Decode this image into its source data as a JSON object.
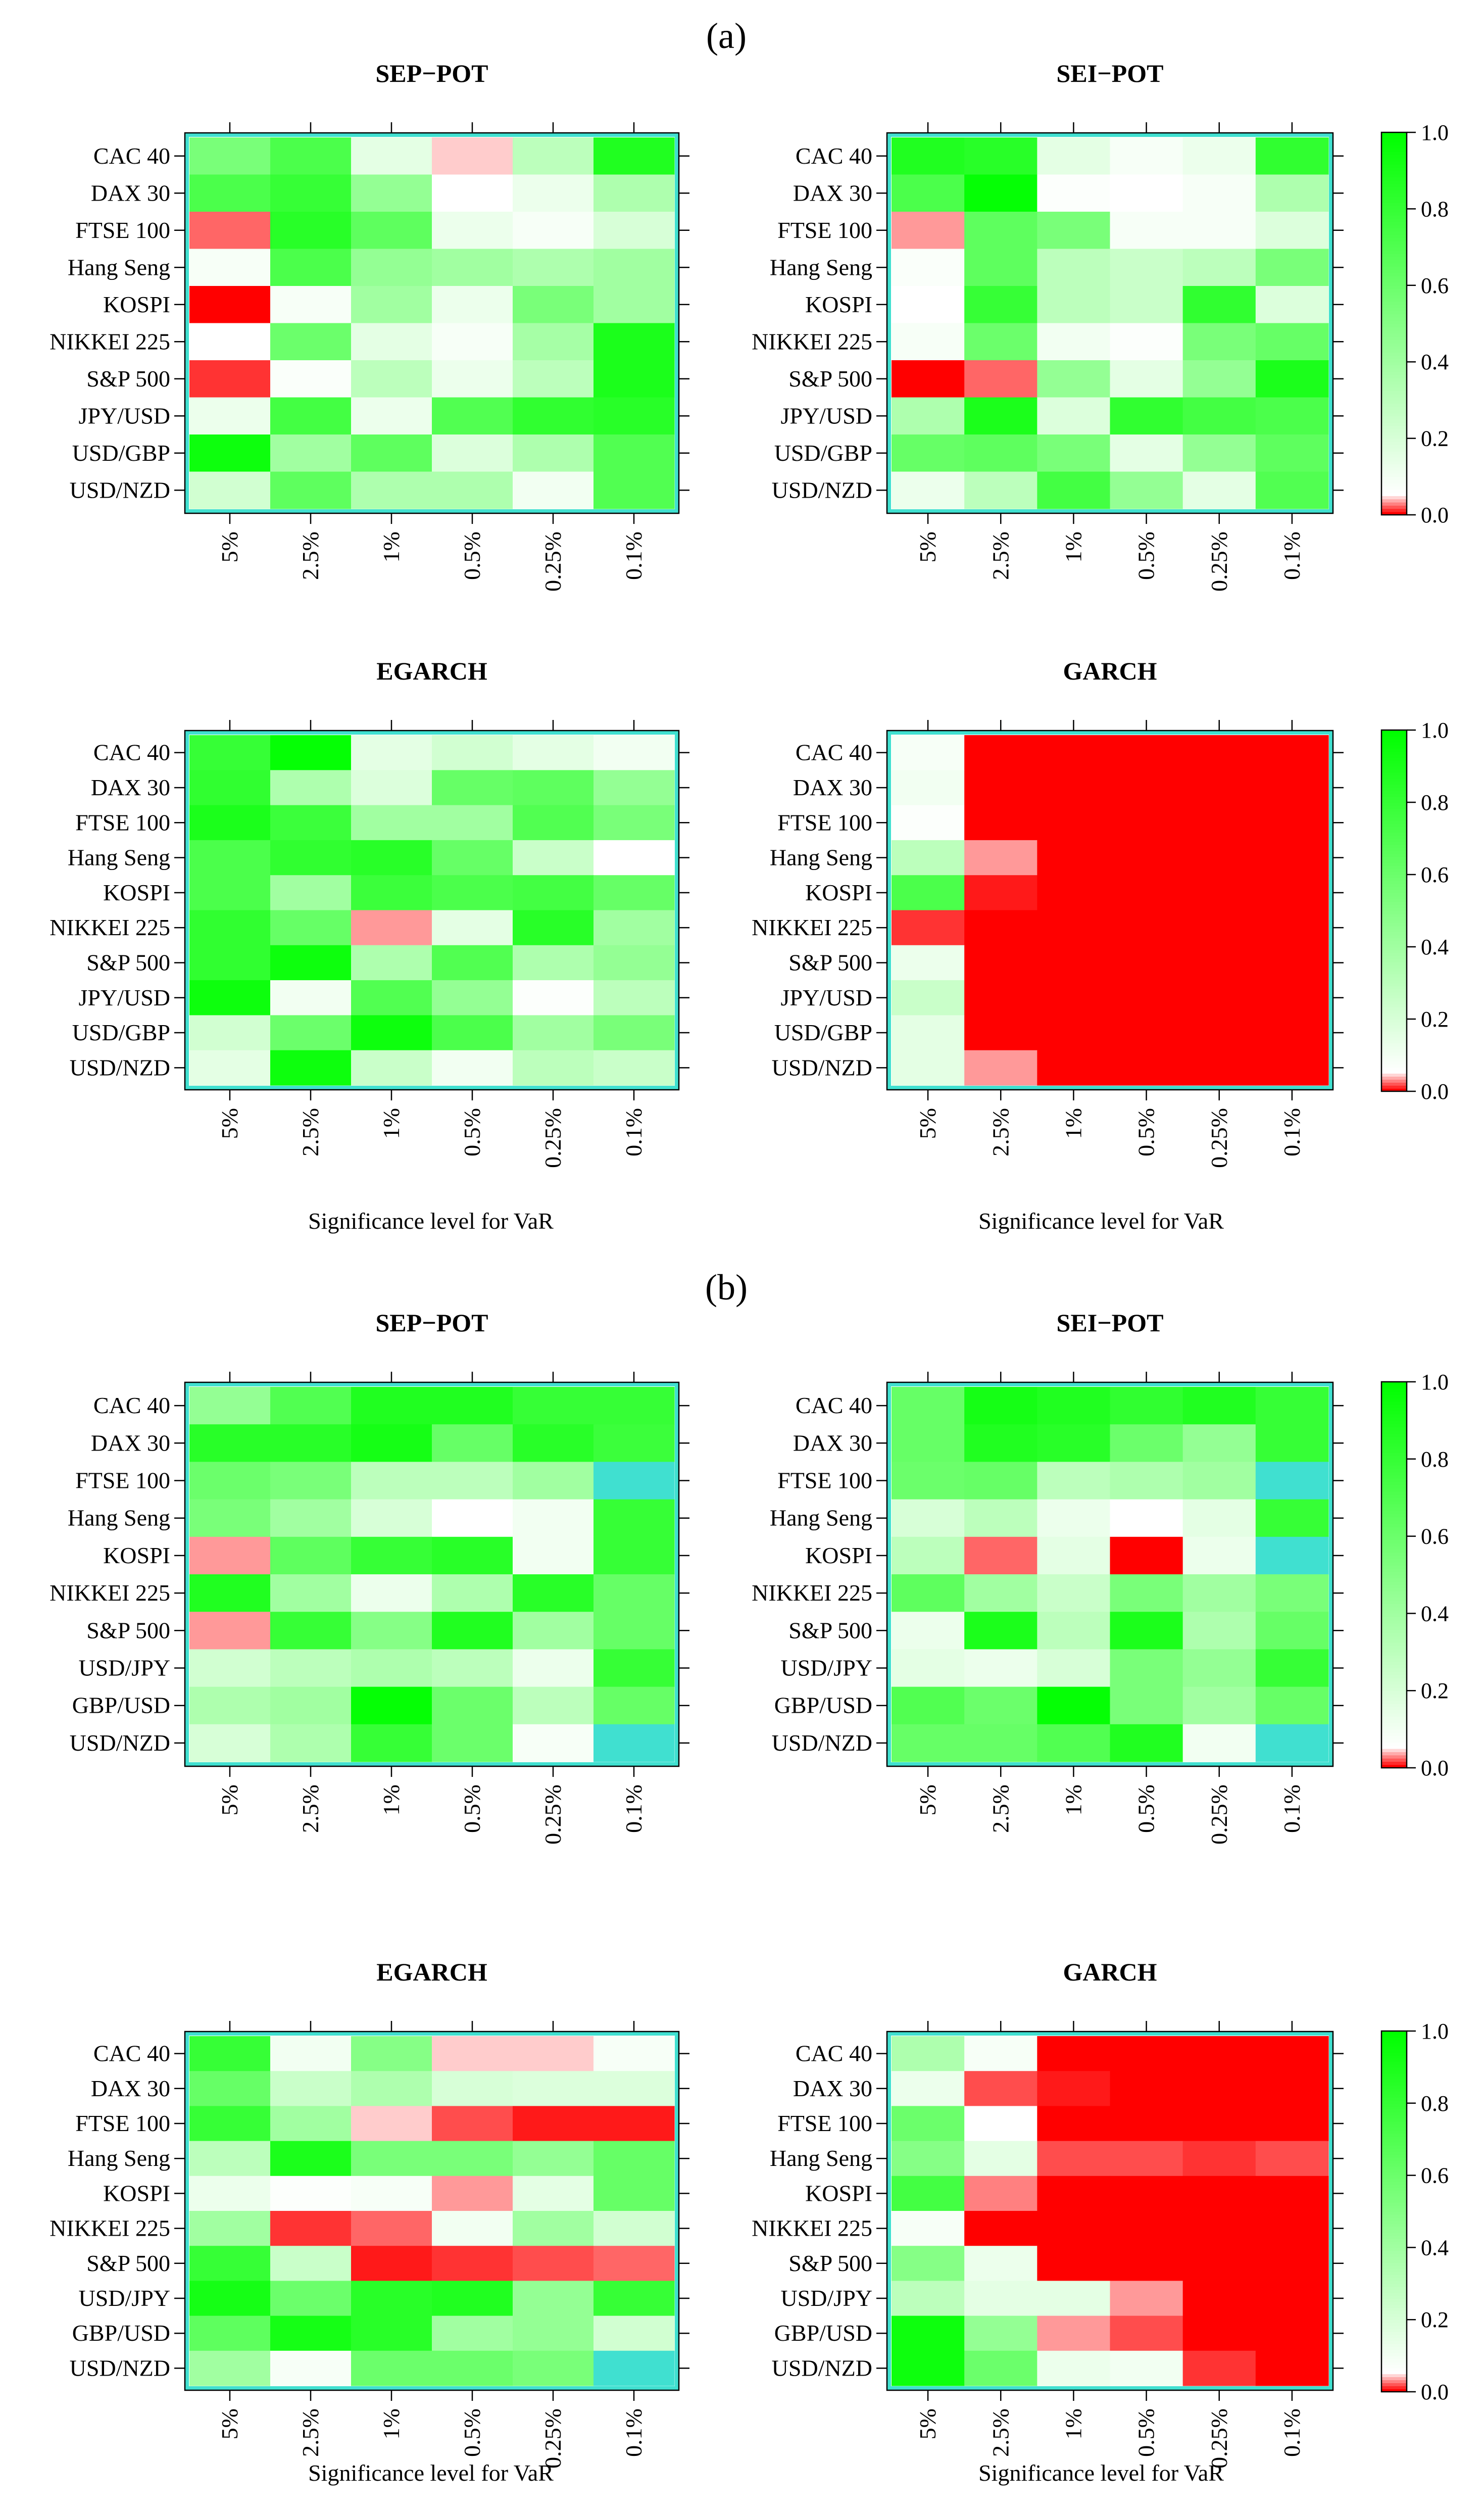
{
  "figure": {
    "panel_a_label": "(a)",
    "panel_b_label": "(b)",
    "xlabel": "Significance level for VaR"
  },
  "colors": {
    "green": "#00ff00",
    "white": "#ffffff",
    "red": "#ff0000",
    "na": "#40e0d0",
    "frame": "#40e0d0"
  },
  "chart_data": [
    {
      "type": "heatmap",
      "panel": "(a)",
      "title": "SEP−POT",
      "rows": [
        "CAC 40",
        "DAX 30",
        "FTSE 100",
        "Hang Seng",
        "KOSPI",
        "NIKKEI 225",
        "S&P 500",
        "JPY/USD",
        "USD/GBP",
        "USD/NZD"
      ],
      "cols": [
        "5%",
        "2.5%",
        "1%",
        "0.5%",
        "0.25%",
        "0.1%"
      ],
      "values": [
        [
          0.55,
          0.72,
          0.15,
          0.04,
          0.3,
          0.88
        ],
        [
          0.72,
          0.8,
          0.45,
          0.05,
          0.12,
          0.35
        ],
        [
          0.02,
          0.85,
          0.65,
          0.12,
          0.08,
          0.2
        ],
        [
          0.08,
          0.72,
          0.45,
          0.4,
          0.35,
          0.4
        ],
        [
          0.0,
          0.08,
          0.4,
          0.12,
          0.55,
          0.4
        ],
        [
          0.05,
          0.6,
          0.15,
          0.08,
          0.38,
          0.9
        ],
        [
          0.01,
          0.07,
          0.3,
          0.12,
          0.3,
          0.9
        ],
        [
          0.12,
          0.75,
          0.12,
          0.7,
          0.82,
          0.85
        ],
        [
          0.95,
          0.4,
          0.65,
          0.18,
          0.35,
          0.7
        ],
        [
          0.22,
          0.65,
          0.35,
          0.35,
          0.1,
          0.7
        ]
      ],
      "colorbar": {
        "ticks": [
          "0.0",
          "0.2",
          "0.4",
          "0.6",
          "0.8",
          "1.0"
        ]
      }
    },
    {
      "type": "heatmap",
      "panel": "(a)",
      "title": "SEI−POT",
      "rows": [
        "CAC 40",
        "DAX 30",
        "FTSE 100",
        "Hang Seng",
        "KOSPI",
        "NIKKEI 225",
        "S&P 500",
        "JPY/USD",
        "USD/GBP",
        "USD/NZD"
      ],
      "cols": [
        "5%",
        "2.5%",
        "1%",
        "0.5%",
        "0.25%",
        "0.1%"
      ],
      "values": [
        [
          0.88,
          0.85,
          0.15,
          0.08,
          0.12,
          0.82
        ],
        [
          0.72,
          0.98,
          0.06,
          0.05,
          0.08,
          0.35
        ],
        [
          0.03,
          0.65,
          0.55,
          0.08,
          0.08,
          0.18
        ],
        [
          0.07,
          0.65,
          0.3,
          0.25,
          0.3,
          0.55
        ],
        [
          0.05,
          0.8,
          0.3,
          0.25,
          0.82,
          0.18
        ],
        [
          0.08,
          0.6,
          0.1,
          0.06,
          0.55,
          0.62
        ],
        [
          0.0,
          0.02,
          0.45,
          0.15,
          0.45,
          0.9
        ],
        [
          0.35,
          0.9,
          0.18,
          0.82,
          0.75,
          0.72
        ],
        [
          0.62,
          0.65,
          0.55,
          0.15,
          0.45,
          0.65
        ],
        [
          0.12,
          0.3,
          0.75,
          0.45,
          0.15,
          0.7
        ]
      ],
      "colorbar": {
        "ticks": [
          "0.0",
          "0.2",
          "0.4",
          "0.6",
          "0.8",
          "1.0"
        ]
      }
    },
    {
      "type": "heatmap",
      "panel": "(a)",
      "title": "EGARCH",
      "rows": [
        "CAC 40",
        "DAX 30",
        "FTSE 100",
        "Hang Seng",
        "KOSPI",
        "NIKKEI 225",
        "S&P 500",
        "JPY/USD",
        "USD/GBP",
        "USD/NZD"
      ],
      "cols": [
        "5%",
        "2.5%",
        "1%",
        "0.5%",
        "0.25%",
        "0.1%"
      ],
      "values": [
        [
          0.8,
          0.98,
          0.15,
          0.22,
          0.15,
          0.1
        ],
        [
          0.82,
          0.35,
          0.18,
          0.62,
          0.65,
          0.45
        ],
        [
          0.9,
          0.78,
          0.4,
          0.4,
          0.7,
          0.55
        ],
        [
          0.72,
          0.82,
          0.85,
          0.62,
          0.25,
          0.05
        ],
        [
          0.72,
          0.4,
          0.78,
          0.72,
          0.75,
          0.62
        ],
        [
          0.82,
          0.62,
          0.03,
          0.15,
          0.85,
          0.4
        ],
        [
          0.82,
          0.95,
          0.35,
          0.7,
          0.35,
          0.45
        ],
        [
          0.95,
          0.1,
          0.7,
          0.45,
          0.06,
          0.3
        ],
        [
          0.22,
          0.6,
          0.95,
          0.72,
          0.4,
          0.55
        ],
        [
          0.15,
          0.95,
          0.25,
          0.1,
          0.3,
          0.25
        ]
      ],
      "colorbar": {
        "ticks": [
          "0.0",
          "0.2",
          "0.4",
          "0.6",
          "0.8",
          "1.0"
        ]
      }
    },
    {
      "type": "heatmap",
      "panel": "(a)",
      "title": "GARCH",
      "rows": [
        "CAC 40",
        "DAX 30",
        "FTSE 100",
        "Hang Seng",
        "KOSPI",
        "NIKKEI 225",
        "S&P 500",
        "JPY/USD",
        "USD/GBP",
        "USD/NZD"
      ],
      "cols": [
        "5%",
        "2.5%",
        "1%",
        "0.5%",
        "0.25%",
        "0.1%"
      ],
      "values": [
        [
          0.08,
          0.0,
          0.0,
          0.0,
          0.0,
          0.0
        ],
        [
          0.1,
          0.0,
          0.0,
          0.0,
          0.0,
          0.0
        ],
        [
          0.06,
          0.0,
          0.0,
          0.0,
          0.0,
          0.0
        ],
        [
          0.3,
          0.03,
          0.0,
          0.0,
          0.0,
          0.0
        ],
        [
          0.72,
          0.005,
          0.0,
          0.0,
          0.0,
          0.0
        ],
        [
          0.01,
          0.0,
          0.0,
          0.0,
          0.0,
          0.0
        ],
        [
          0.12,
          0.0,
          0.0,
          0.0,
          0.0,
          0.0
        ],
        [
          0.25,
          0.0,
          0.0,
          0.0,
          0.0,
          0.0
        ],
        [
          0.15,
          0.0,
          0.0,
          0.0,
          0.0,
          0.0
        ],
        [
          0.15,
          0.03,
          0.0,
          0.0,
          0.0,
          0.0
        ]
      ],
      "colorbar": {
        "ticks": [
          "0.0",
          "0.2",
          "0.4",
          "0.6",
          "0.8",
          "1.0"
        ]
      }
    },
    {
      "type": "heatmap",
      "panel": "(b)",
      "title": "SEP−POT",
      "rows": [
        "CAC 40",
        "DAX 30",
        "FTSE 100",
        "Hang Seng",
        "KOSPI",
        "NIKKEI 225",
        "S&P 500",
        "USD/JPY",
        "GBP/USD",
        "USD/NZD"
      ],
      "cols": [
        "5%",
        "2.5%",
        "1%",
        "0.5%",
        "0.25%",
        "0.1%"
      ],
      "values": [
        [
          0.45,
          0.7,
          0.88,
          0.88,
          0.8,
          0.8
        ],
        [
          0.85,
          0.85,
          0.92,
          0.62,
          0.85,
          0.78
        ],
        [
          0.6,
          0.55,
          0.3,
          0.3,
          0.4,
          null
        ],
        [
          0.55,
          0.4,
          0.2,
          0.05,
          0.1,
          0.8
        ],
        [
          0.03,
          0.65,
          0.8,
          0.85,
          0.1,
          0.8
        ],
        [
          0.88,
          0.4,
          0.12,
          0.35,
          0.85,
          0.62
        ],
        [
          0.03,
          0.8,
          0.5,
          0.88,
          0.4,
          0.62
        ],
        [
          0.22,
          0.3,
          0.35,
          0.3,
          0.12,
          0.8
        ],
        [
          0.35,
          0.4,
          0.98,
          0.6,
          0.3,
          0.62
        ],
        [
          0.2,
          0.35,
          0.8,
          0.6,
          0.08,
          null
        ]
      ],
      "colorbar": {
        "ticks": [
          "0.0",
          "0.2",
          "0.4",
          "0.6",
          "0.8",
          "1.0"
        ]
      }
    },
    {
      "type": "heatmap",
      "panel": "(b)",
      "title": "SEI−POT",
      "rows": [
        "CAC 40",
        "DAX 30",
        "FTSE 100",
        "Hang Seng",
        "KOSPI",
        "NIKKEI 225",
        "S&P 500",
        "USD/JPY",
        "GBP/USD",
        "USD/NZD"
      ],
      "cols": [
        "5%",
        "2.5%",
        "1%",
        "0.5%",
        "0.25%",
        "0.1%"
      ],
      "values": [
        [
          0.62,
          0.92,
          0.88,
          0.82,
          0.88,
          0.8
        ],
        [
          0.62,
          0.88,
          0.85,
          0.6,
          0.45,
          0.8
        ],
        [
          0.6,
          0.62,
          0.3,
          0.35,
          0.4,
          null
        ],
        [
          0.2,
          0.3,
          0.12,
          0.05,
          0.15,
          0.8
        ],
        [
          0.3,
          0.02,
          0.15,
          0.0,
          0.12,
          null
        ],
        [
          0.65,
          0.4,
          0.25,
          0.55,
          0.4,
          0.55
        ],
        [
          0.12,
          0.9,
          0.3,
          0.9,
          0.35,
          0.62
        ],
        [
          0.15,
          0.12,
          0.2,
          0.55,
          0.45,
          0.8
        ],
        [
          0.7,
          0.6,
          0.98,
          0.55,
          0.4,
          0.62
        ],
        [
          0.62,
          0.62,
          0.7,
          0.88,
          0.1,
          null
        ]
      ],
      "colorbar": {
        "ticks": [
          "0.0",
          "0.2",
          "0.4",
          "0.6",
          "0.8",
          "1.0"
        ]
      }
    },
    {
      "type": "heatmap",
      "panel": "(b)",
      "title": "EGARCH",
      "rows": [
        "CAC 40",
        "DAX 30",
        "FTSE 100",
        "Hang Seng",
        "KOSPI",
        "NIKKEI 225",
        "S&P 500",
        "USD/JPY",
        "GBP/USD",
        "USD/NZD"
      ],
      "cols": [
        "5%",
        "2.5%",
        "1%",
        "0.5%",
        "0.25%",
        "0.1%"
      ],
      "values": [
        [
          0.8,
          0.1,
          0.5,
          0.04,
          0.04,
          0.08
        ],
        [
          0.62,
          0.25,
          0.35,
          0.2,
          0.18,
          0.18
        ],
        [
          0.8,
          0.4,
          0.04,
          0.015,
          0.005,
          0.005
        ],
        [
          0.3,
          0.9,
          0.55,
          0.55,
          0.45,
          0.62
        ],
        [
          0.12,
          0.06,
          0.08,
          0.03,
          0.15,
          0.62
        ],
        [
          0.4,
          0.01,
          0.02,
          0.1,
          0.4,
          0.22
        ],
        [
          0.8,
          0.25,
          0.005,
          0.01,
          0.015,
          0.02
        ],
        [
          0.92,
          0.6,
          0.85,
          0.88,
          0.45,
          0.8
        ],
        [
          0.65,
          0.92,
          0.85,
          0.4,
          0.45,
          0.22
        ],
        [
          0.4,
          0.08,
          0.6,
          0.6,
          0.55,
          null
        ]
      ],
      "colorbar": {
        "ticks": [
          "0.0",
          "0.2",
          "0.4",
          "0.6",
          "0.8",
          "1.0"
        ]
      }
    },
    {
      "type": "heatmap",
      "panel": "(b)",
      "title": "GARCH",
      "rows": [
        "CAC 40",
        "DAX 30",
        "FTSE 100",
        "Hang Seng",
        "KOSPI",
        "NIKKEI 225",
        "S&P 500",
        "USD/JPY",
        "GBP/USD",
        "USD/NZD"
      ],
      "cols": [
        "5%",
        "2.5%",
        "1%",
        "0.5%",
        "0.25%",
        "0.1%"
      ],
      "values": [
        [
          0.35,
          0.08,
          0.0,
          0.0,
          0.0,
          0.0
        ],
        [
          0.12,
          0.015,
          0.005,
          0.0,
          0.0,
          0.0
        ],
        [
          0.6,
          0.05,
          0.0,
          0.0,
          0.0,
          0.0
        ],
        [
          0.5,
          0.15,
          0.015,
          0.015,
          0.01,
          0.015
        ],
        [
          0.75,
          0.025,
          0.0,
          0.0,
          0.0,
          0.0
        ],
        [
          0.08,
          0.0,
          0.0,
          0.0,
          0.0,
          0.0
        ],
        [
          0.5,
          0.12,
          0.0,
          0.0,
          0.0,
          0.0
        ],
        [
          0.3,
          0.15,
          0.15,
          0.03,
          0.0,
          0.0
        ],
        [
          0.95,
          0.45,
          0.03,
          0.015,
          0.0,
          0.0
        ],
        [
          0.95,
          0.6,
          0.12,
          0.1,
          0.01,
          0.0
        ]
      ],
      "colorbar": {
        "ticks": [
          "0.0",
          "0.2",
          "0.4",
          "0.6",
          "0.8",
          "1.0"
        ]
      }
    }
  ]
}
